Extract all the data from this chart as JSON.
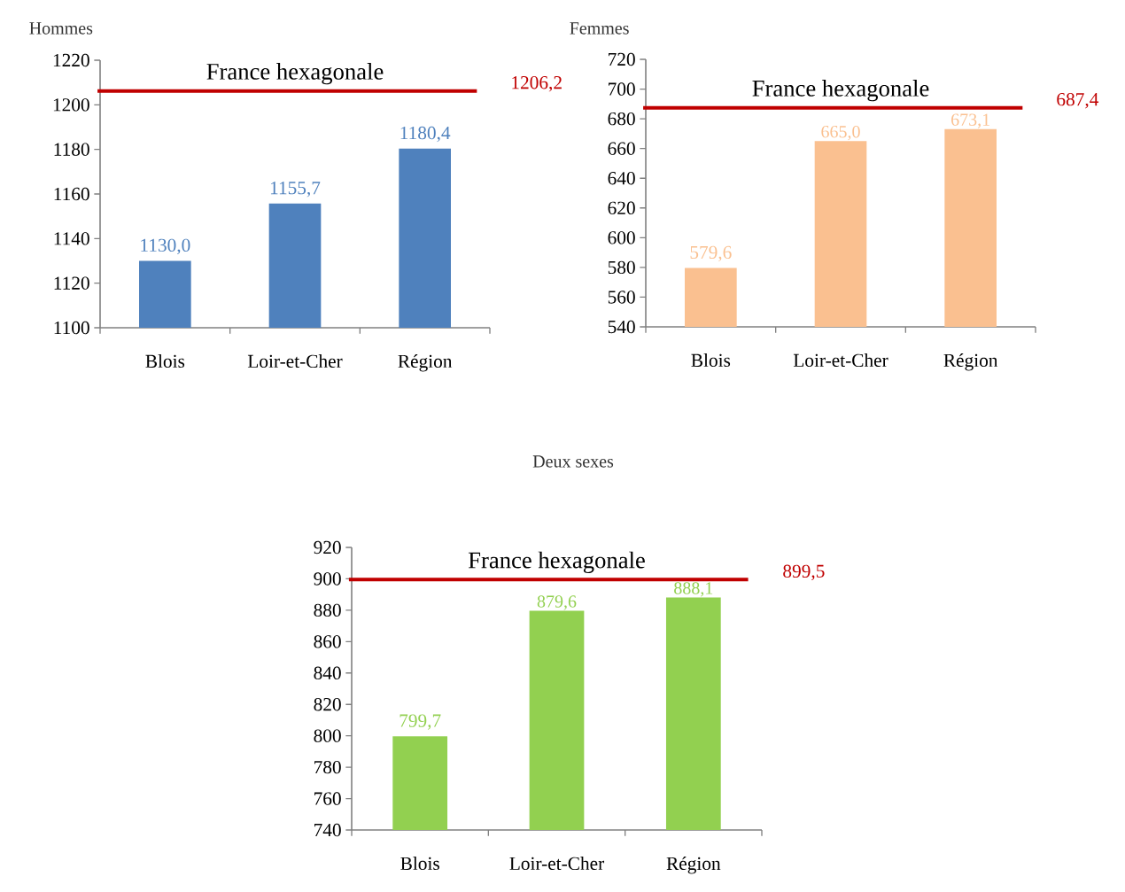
{
  "chart_data": [
    {
      "type": "bar",
      "title": "Hommes",
      "categories": [
        "Blois",
        "Loir-et-Cher",
        "Région"
      ],
      "values": [
        1130.0,
        1155.7,
        1180.4
      ],
      "value_labels": [
        "1130,0",
        "1155,7",
        "1180,4"
      ],
      "color": "#4f81bd",
      "ylim": [
        1100,
        1220
      ],
      "yticks": [
        1100,
        1120,
        1140,
        1160,
        1180,
        1200,
        1220
      ],
      "ref_lines": [
        {
          "axis": "y",
          "value": 1206.2,
          "label": "France hexagonale",
          "color": "#c00000"
        }
      ],
      "annotations": [
        "1206,2"
      ]
    },
    {
      "type": "bar",
      "title": "Femmes",
      "categories": [
        "Blois",
        "Loir-et-Cher",
        "Région"
      ],
      "values": [
        579.6,
        665.0,
        673.1
      ],
      "value_labels": [
        "579,6",
        "665,0",
        "673,1"
      ],
      "color": "#fac090",
      "ylim": [
        540,
        720
      ],
      "yticks": [
        540,
        560,
        580,
        600,
        620,
        640,
        660,
        680,
        700,
        720
      ],
      "ref_lines": [
        {
          "axis": "y",
          "value": 687.4,
          "label": "France hexagonale",
          "color": "#c00000"
        }
      ],
      "annotations": [
        "687,4"
      ]
    },
    {
      "type": "bar",
      "title": "Deux sexes",
      "categories": [
        "Blois",
        "Loir-et-Cher",
        "Région"
      ],
      "values": [
        799.7,
        879.6,
        888.1
      ],
      "value_labels": [
        "799,7",
        "879,6",
        "888,1"
      ],
      "color": "#92d050",
      "ylim": [
        740,
        920
      ],
      "yticks": [
        740,
        760,
        780,
        800,
        820,
        840,
        860,
        880,
        900,
        920
      ],
      "ref_lines": [
        {
          "axis": "y",
          "value": 899.5,
          "label": "France hexagonale",
          "color": "#c00000"
        }
      ],
      "annotations": [
        "899,5"
      ]
    }
  ]
}
